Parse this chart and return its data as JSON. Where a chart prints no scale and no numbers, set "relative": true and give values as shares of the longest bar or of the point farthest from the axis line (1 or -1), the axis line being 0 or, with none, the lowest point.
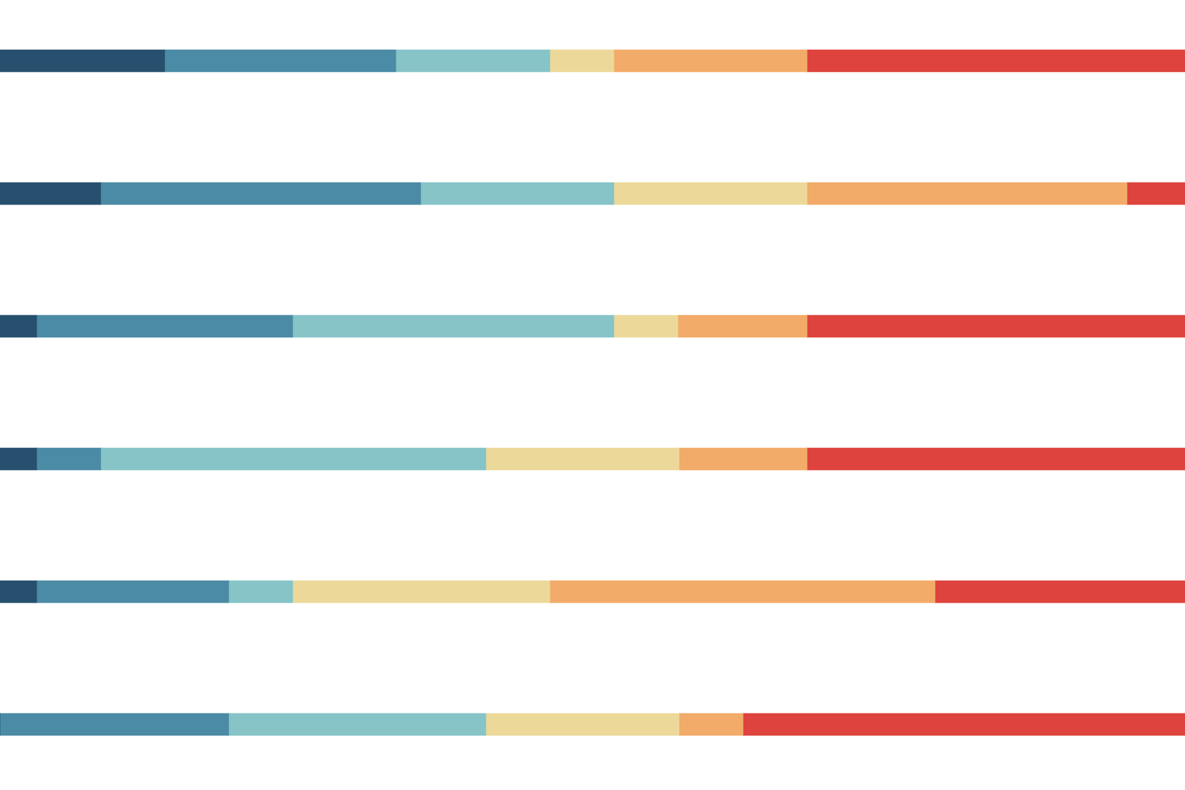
{
  "chart_data": {
    "type": "bar",
    "orientation": "horizontal",
    "stacked": true,
    "relative": true,
    "categories": [
      null,
      null,
      null,
      null,
      null,
      null
    ],
    "series": [
      {
        "color": "#27506e",
        "values": [
          0.139,
          0.085,
          0.031,
          0.031,
          0.031,
          0
        ]
      },
      {
        "color": "#4b8ba5",
        "values": [
          0.195,
          0.27,
          0.216,
          0.054,
          0.162,
          0.193
        ]
      },
      {
        "color": "#86c4c8",
        "values": [
          0.13,
          0.163,
          0.271,
          0.325,
          0.054,
          0.217
        ]
      },
      {
        "color": "#ecd99a",
        "values": [
          0.054,
          0.163,
          0.054,
          0.163,
          0.217,
          0.163
        ]
      },
      {
        "color": "#f2ab69",
        "values": [
          0.163,
          0.27,
          0.109,
          0.108,
          0.325,
          0.054
        ]
      },
      {
        "color": "#de433d",
        "values": [
          0.319,
          0.049,
          0.319,
          0.319,
          0.211,
          0.373
        ]
      }
    ]
  }
}
